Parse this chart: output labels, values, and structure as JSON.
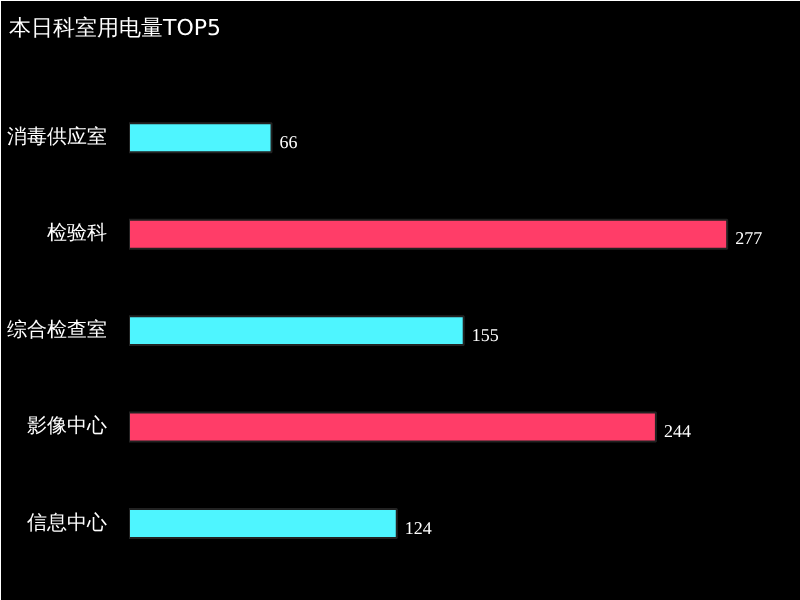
{
  "chart_data": {
    "type": "bar",
    "orientation": "horizontal",
    "title": "本日科室用电量TOP5",
    "categories": [
      "消毒供应室",
      "检验科",
      "综合检查室",
      "影像中心",
      "信息中心"
    ],
    "values": [
      66,
      277,
      155,
      244,
      124
    ],
    "colors": [
      "#4ef5ff",
      "#ff3d68",
      "#4ef5ff",
      "#ff3d68",
      "#4ef5ff"
    ],
    "data_labels": true,
    "grid": false
  }
}
